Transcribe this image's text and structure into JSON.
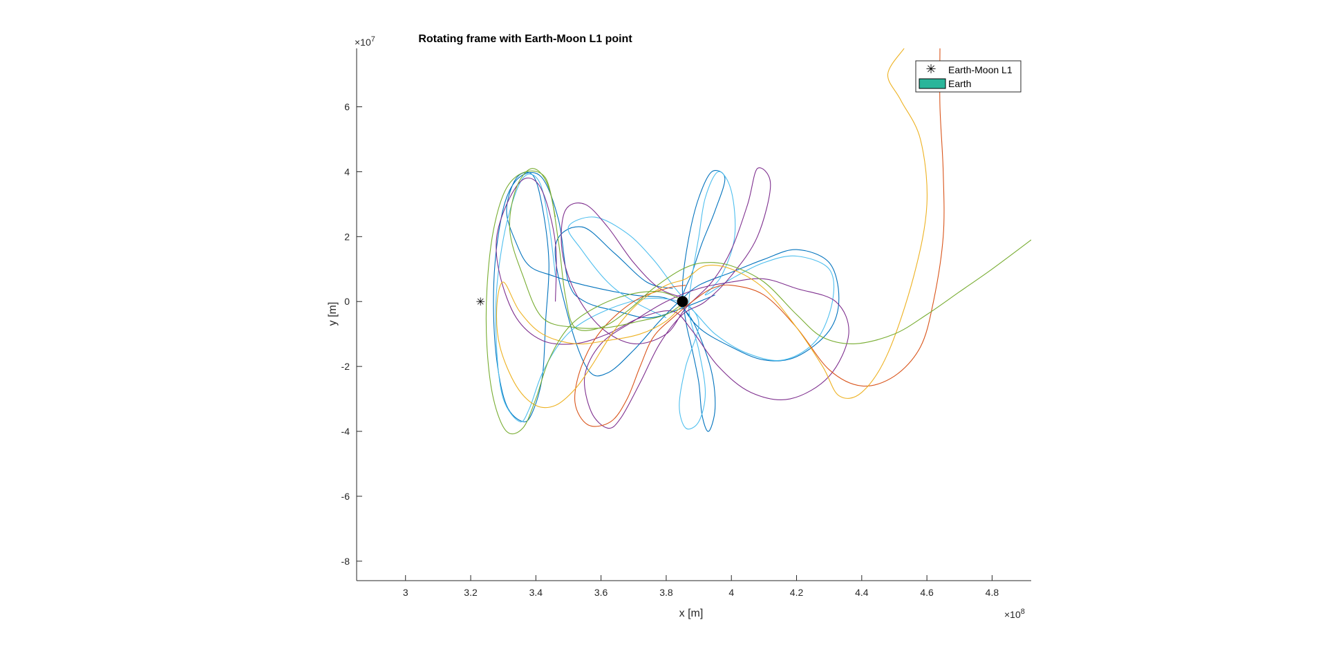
{
  "chart_data": {
    "type": "line",
    "title": "Rotating frame with Earth-Moon L1 point",
    "xlabel": "x [m]",
    "ylabel": "y [m]",
    "x_multiplier": "×10",
    "x_multiplier_exp": "8",
    "y_multiplier": "×10",
    "y_multiplier_exp": "7",
    "xlim": [
      2.85,
      4.92
    ],
    "ylim": [
      -8.6,
      7.8
    ],
    "x_ticks": [
      3,
      3.2,
      3.4,
      3.6,
      3.8,
      4,
      4.2,
      4.4,
      4.6,
      4.8
    ],
    "x_tick_labels": [
      "3",
      "3.2",
      "3.4",
      "3.6",
      "3.8",
      "4",
      "4.2",
      "4.4",
      "4.6",
      "4.8"
    ],
    "y_ticks": [
      -8,
      -6,
      -4,
      -2,
      0,
      2,
      4,
      6
    ],
    "y_tick_labels": [
      "-8",
      "-6",
      "-4",
      "-2",
      "0",
      "2",
      "4",
      "6"
    ],
    "grid": false,
    "legend_position": "top-right",
    "legend": [
      {
        "label": "Earth-Moon L1",
        "marker": "*",
        "color": "#000000"
      },
      {
        "label": "Earth",
        "marker": "patch",
        "color": "#2ab59a"
      }
    ],
    "l1_point": {
      "x": 3.23,
      "y": 0
    },
    "earth_point": {
      "x": 3.85,
      "y": 0
    },
    "series": [
      {
        "color": "#0072BD",
        "points": [
          [
            3.82,
            0.4
          ],
          [
            3.74,
            0.6
          ],
          [
            3.64,
            1.5
          ],
          [
            3.54,
            2.3
          ],
          [
            3.46,
            1.7
          ],
          [
            3.5,
            -0.5
          ],
          [
            3.56,
            -2.1
          ],
          [
            3.62,
            -2.2
          ],
          [
            3.7,
            -1.5
          ],
          [
            3.78,
            -0.6
          ],
          [
            3.84,
            0
          ],
          [
            3.9,
            0.5
          ],
          [
            4.0,
            0.9
          ],
          [
            4.1,
            1.3
          ],
          [
            4.2,
            1.6
          ],
          [
            4.3,
            1.2
          ],
          [
            4.33,
            0.1
          ],
          [
            4.3,
            -0.9
          ],
          [
            4.2,
            -1.7
          ],
          [
            4.1,
            -1.8
          ],
          [
            4.0,
            -1.4
          ],
          [
            3.9,
            -0.8
          ],
          [
            3.85,
            0
          ],
          [
            3.88,
            0.9
          ],
          [
            3.91,
            1.8
          ],
          [
            3.95,
            2.8
          ],
          [
            3.98,
            3.8
          ],
          [
            3.94,
            4.0
          ],
          [
            3.9,
            3.2
          ],
          [
            3.87,
            2.0
          ],
          [
            3.85,
            0.5
          ],
          [
            3.86,
            -0.6
          ],
          [
            3.88,
            -1.5
          ],
          [
            3.9,
            -2.5
          ],
          [
            3.91,
            -3.5
          ],
          [
            3.93,
            -4.0
          ],
          [
            3.95,
            -3.3
          ],
          [
            3.94,
            -2.2
          ],
          [
            3.9,
            -1.0
          ],
          [
            3.86,
            -0.3
          ],
          [
            3.8,
            0.1
          ],
          [
            3.7,
            0.2
          ],
          [
            3.55,
            0.5
          ],
          [
            3.45,
            0.8
          ],
          [
            3.38,
            1.1
          ],
          [
            3.34,
            1.8
          ],
          [
            3.31,
            2.8
          ],
          [
            3.34,
            3.8
          ],
          [
            3.39,
            3.9
          ],
          [
            3.42,
            2.9
          ],
          [
            3.44,
            1.2
          ],
          [
            3.43,
            -0.6
          ],
          [
            3.42,
            -2.3
          ],
          [
            3.39,
            -3.4
          ],
          [
            3.36,
            -3.7
          ],
          [
            3.31,
            -3.2
          ],
          [
            3.28,
            -1.8
          ],
          [
            3.27,
            0
          ],
          [
            3.28,
            1.7
          ],
          [
            3.31,
            3.2
          ],
          [
            3.36,
            3.9
          ],
          [
            3.42,
            3.8
          ],
          [
            3.47,
            2.5
          ],
          [
            3.5,
            0.6
          ],
          [
            3.55,
            0.0
          ],
          [
            3.65,
            -0.3
          ],
          [
            3.75,
            -0.5
          ],
          [
            3.85,
            -0.2
          ],
          [
            3.95,
            0.2
          ]
        ]
      },
      {
        "color": "#4DBEEE",
        "points": [
          [
            3.8,
            -0.5
          ],
          [
            3.7,
            0
          ],
          [
            3.62,
            0.6
          ],
          [
            3.54,
            1.6
          ],
          [
            3.5,
            2.3
          ],
          [
            3.58,
            2.6
          ],
          [
            3.68,
            2.1
          ],
          [
            3.76,
            1.3
          ],
          [
            3.82,
            0.5
          ],
          [
            3.86,
            0
          ],
          [
            3.9,
            -0.7
          ],
          [
            3.86,
            -2.0
          ],
          [
            3.84,
            -3.2
          ],
          [
            3.86,
            -3.9
          ],
          [
            3.9,
            -3.7
          ],
          [
            3.92,
            -2.8
          ],
          [
            3.9,
            -1.5
          ],
          [
            3.87,
            -0.3
          ],
          [
            3.88,
            0.8
          ],
          [
            3.9,
            2.0
          ],
          [
            3.92,
            3.2
          ],
          [
            3.96,
            4.0
          ],
          [
            4.0,
            3.4
          ],
          [
            4.01,
            2.0
          ],
          [
            3.97,
            0.8
          ],
          [
            3.92,
            0.2
          ],
          [
            4.0,
            0.7
          ],
          [
            4.1,
            1.2
          ],
          [
            4.2,
            1.4
          ],
          [
            4.3,
            1.0
          ],
          [
            4.31,
            0
          ],
          [
            4.26,
            -1.2
          ],
          [
            4.16,
            -1.8
          ],
          [
            4.05,
            -1.6
          ],
          [
            3.95,
            -1.0
          ],
          [
            3.86,
            -0.1
          ],
          [
            3.76,
            0.1
          ],
          [
            3.66,
            -0.1
          ],
          [
            3.55,
            -0.6
          ],
          [
            3.48,
            -1.2
          ],
          [
            3.42,
            -2.2
          ],
          [
            3.38,
            -3.3
          ],
          [
            3.35,
            -3.7
          ],
          [
            3.3,
            -3.0
          ],
          [
            3.28,
            -1.5
          ],
          [
            3.28,
            0.4
          ],
          [
            3.31,
            2.4
          ],
          [
            3.36,
            3.8
          ],
          [
            3.41,
            3.7
          ],
          [
            3.44,
            2.4
          ],
          [
            3.46,
            0.8
          ]
        ]
      },
      {
        "color": "#7E2F8E",
        "points": [
          [
            3.86,
            0.1
          ],
          [
            3.78,
            0.4
          ],
          [
            3.7,
            1.2
          ],
          [
            3.62,
            2.3
          ],
          [
            3.55,
            3.0
          ],
          [
            3.49,
            2.8
          ],
          [
            3.48,
            1.6
          ],
          [
            3.52,
            0.3
          ],
          [
            3.6,
            -0.8
          ],
          [
            3.7,
            -1.3
          ],
          [
            3.8,
            -1.0
          ],
          [
            3.86,
            -0.2
          ],
          [
            3.94,
            0.6
          ],
          [
            4.0,
            1.6
          ],
          [
            4.05,
            3.0
          ],
          [
            4.08,
            4.1
          ],
          [
            4.12,
            3.6
          ],
          [
            4.08,
            2.0
          ],
          [
            4.0,
            0.8
          ],
          [
            3.92,
            0
          ],
          [
            3.85,
            -0.4
          ],
          [
            3.78,
            -1.3
          ],
          [
            3.72,
            -2.5
          ],
          [
            3.66,
            -3.6
          ],
          [
            3.62,
            -3.9
          ],
          [
            3.57,
            -3.4
          ],
          [
            3.55,
            -2.3
          ],
          [
            3.6,
            -1.3
          ],
          [
            3.7,
            -0.6
          ],
          [
            3.8,
            0
          ],
          [
            3.9,
            0.4
          ],
          [
            4.0,
            0.6
          ],
          [
            4.1,
            0.7
          ],
          [
            4.2,
            0.4
          ],
          [
            4.32,
            0
          ],
          [
            4.36,
            -1.0
          ],
          [
            4.3,
            -2.3
          ],
          [
            4.18,
            -3.0
          ],
          [
            4.06,
            -2.8
          ],
          [
            3.96,
            -2.0
          ],
          [
            3.88,
            -0.9
          ],
          [
            3.82,
            -0.3
          ],
          [
            3.72,
            -0.5
          ],
          [
            3.62,
            -1.0
          ],
          [
            3.52,
            -1.3
          ],
          [
            3.42,
            -1.2
          ],
          [
            3.34,
            -0.5
          ],
          [
            3.29,
            0.8
          ],
          [
            3.28,
            2.0
          ],
          [
            3.32,
            3.2
          ],
          [
            3.37,
            3.8
          ],
          [
            3.42,
            3.4
          ],
          [
            3.46,
            1.8
          ],
          [
            3.46,
            0
          ]
        ]
      },
      {
        "color": "#D95319",
        "points": [
          [
            3.86,
            0.5
          ],
          [
            3.8,
            0.4
          ],
          [
            3.7,
            0
          ],
          [
            3.6,
            -0.9
          ],
          [
            3.54,
            -2.0
          ],
          [
            3.52,
            -3.1
          ],
          [
            3.56,
            -3.8
          ],
          [
            3.63,
            -3.7
          ],
          [
            3.68,
            -3.0
          ],
          [
            3.72,
            -2.0
          ],
          [
            3.76,
            -1.1
          ],
          [
            3.82,
            -0.5
          ],
          [
            3.88,
            0
          ],
          [
            3.94,
            0.4
          ],
          [
            4.0,
            0.5
          ],
          [
            4.1,
            0.2
          ],
          [
            4.2,
            -0.8
          ],
          [
            4.3,
            -2.1
          ],
          [
            4.4,
            -2.6
          ],
          [
            4.5,
            -2.3
          ],
          [
            4.58,
            -1.4
          ],
          [
            4.62,
            0
          ],
          [
            4.65,
            2.0
          ],
          [
            4.65,
            4.0
          ],
          [
            4.64,
            6.0
          ],
          [
            4.64,
            7.8
          ]
        ]
      },
      {
        "color": "#EDB120",
        "points": [
          [
            3.86,
            0
          ],
          [
            3.8,
            -0.6
          ],
          [
            3.72,
            -1.0
          ],
          [
            3.62,
            -1.2
          ],
          [
            3.52,
            -1.3
          ],
          [
            3.42,
            -1.0
          ],
          [
            3.35,
            -0.3
          ],
          [
            3.3,
            0.6
          ],
          [
            3.28,
            -0.2
          ],
          [
            3.29,
            -1.4
          ],
          [
            3.34,
            -2.6
          ],
          [
            3.4,
            -3.2
          ],
          [
            3.46,
            -3.2
          ],
          [
            3.52,
            -2.7
          ],
          [
            3.57,
            -2.0
          ],
          [
            3.64,
            -0.9
          ],
          [
            3.72,
            0
          ],
          [
            3.8,
            0.5
          ],
          [
            3.86,
            0.7
          ],
          [
            3.92,
            1.1
          ],
          [
            4.0,
            1.0
          ],
          [
            4.1,
            0.4
          ],
          [
            4.2,
            -0.8
          ],
          [
            4.28,
            -2.0
          ],
          [
            4.33,
            -2.9
          ],
          [
            4.4,
            -2.8
          ],
          [
            4.48,
            -1.6
          ],
          [
            4.56,
            0.8
          ],
          [
            4.6,
            3.0
          ],
          [
            4.58,
            5.0
          ],
          [
            4.52,
            6.2
          ],
          [
            4.48,
            7.0
          ],
          [
            4.53,
            7.8
          ]
        ]
      },
      {
        "color": "#77AC30",
        "points": [
          [
            3.86,
            0
          ],
          [
            3.8,
            -0.4
          ],
          [
            3.72,
            -0.6
          ],
          [
            3.62,
            -0.8
          ],
          [
            3.52,
            -0.8
          ],
          [
            3.42,
            -0.5
          ],
          [
            3.36,
            0.8
          ],
          [
            3.32,
            2.2
          ],
          [
            3.34,
            3.5
          ],
          [
            3.39,
            4.1
          ],
          [
            3.44,
            3.5
          ],
          [
            3.47,
            1.8
          ],
          [
            3.49,
            0.2
          ],
          [
            3.52,
            -0.8
          ],
          [
            3.6,
            -0.8
          ],
          [
            3.68,
            -0.3
          ],
          [
            3.76,
            0.4
          ],
          [
            3.85,
            1.0
          ],
          [
            3.92,
            1.2
          ],
          [
            4.0,
            1.1
          ],
          [
            4.1,
            0.6
          ],
          [
            4.2,
            -0.4
          ],
          [
            4.28,
            -1.1
          ],
          [
            4.38,
            -1.3
          ],
          [
            4.5,
            -1.0
          ],
          [
            4.6,
            -0.4
          ],
          [
            4.7,
            0.3
          ],
          [
            4.8,
            1.0
          ],
          [
            4.92,
            1.9
          ]
        ]
      },
      {
        "color": "#77AC30",
        "points": [
          [
            3.86,
            0
          ],
          [
            3.78,
            0.3
          ],
          [
            3.68,
            0.2
          ],
          [
            3.58,
            -0.2
          ],
          [
            3.5,
            -0.8
          ],
          [
            3.44,
            -1.8
          ],
          [
            3.4,
            -3.0
          ],
          [
            3.36,
            -3.9
          ],
          [
            3.31,
            -4.0
          ],
          [
            3.27,
            -3.0
          ],
          [
            3.25,
            -1.4
          ],
          [
            3.25,
            0.4
          ],
          [
            3.27,
            2.2
          ],
          [
            3.31,
            3.5
          ],
          [
            3.37,
            4.0
          ],
          [
            3.43,
            3.8
          ],
          [
            3.46,
            2.6
          ]
        ]
      }
    ]
  }
}
